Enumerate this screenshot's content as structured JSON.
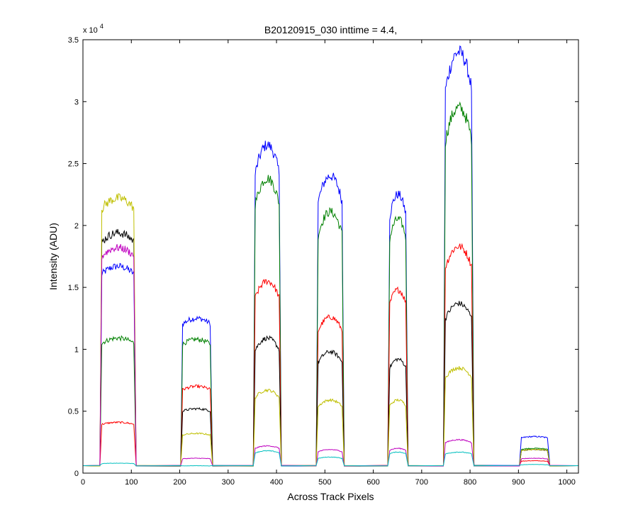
{
  "chart_data": {
    "type": "line",
    "title": "B20120915_030 inttime = 4.4,",
    "xlabel": "Across Track Pixels",
    "ylabel": "Intensity (ADU)",
    "y_multiplier_base": "x 10",
    "y_multiplier_exponent": "4",
    "xlim": [
      0,
      1024
    ],
    "ylim": [
      0,
      35000
    ],
    "x_ticks": [
      0,
      100,
      200,
      300,
      400,
      500,
      600,
      700,
      800,
      900,
      1000
    ],
    "y_ticks": [
      0,
      5000,
      10000,
      15000,
      20000,
      25000,
      30000,
      35000
    ],
    "y_tick_labels": [
      "0",
      "0.5",
      "1",
      "1.5",
      "2",
      "2.5",
      "3",
      "3.5"
    ],
    "x_tick_labels": [
      "0",
      "100",
      "200",
      "300",
      "400",
      "500",
      "600",
      "700",
      "800",
      "900",
      "1000"
    ],
    "grid": false,
    "legend": "none",
    "baseline": 600,
    "segments": [
      {
        "x0": 35,
        "x1": 110
      },
      {
        "x0": 202,
        "x1": 268
      },
      {
        "x0": 352,
        "x1": 410
      },
      {
        "x0": 482,
        "x1": 540
      },
      {
        "x0": 630,
        "x1": 672
      },
      {
        "x0": 745,
        "x1": 808
      },
      {
        "x0": 902,
        "x1": 965
      }
    ],
    "series": [
      {
        "color": "#0000ff",
        "levels": [
          16700,
          12500,
          26500,
          24000,
          22500,
          34000,
          2950
        ]
      },
      {
        "color": "#008000",
        "levels": [
          10900,
          10800,
          23800,
          21100,
          20500,
          29500,
          2000
        ]
      },
      {
        "color": "#ff0000",
        "levels": [
          4100,
          7000,
          15500,
          12600,
          14800,
          18300,
          1000
        ]
      },
      {
        "color": "#000000",
        "levels": [
          19400,
          5200,
          10900,
          9800,
          9200,
          13700,
          1900
        ]
      },
      {
        "color": "#bfbf00",
        "levels": [
          22200,
          3200,
          6700,
          5900,
          5900,
          8500,
          1900
        ]
      },
      {
        "color": "#bf00bf",
        "levels": [
          18200,
          1200,
          2200,
          1900,
          2000,
          2700,
          1200
        ]
      },
      {
        "color": "#00bfbf",
        "levels": [
          800,
          600,
          1800,
          1300,
          1700,
          1700,
          700
        ]
      }
    ]
  }
}
